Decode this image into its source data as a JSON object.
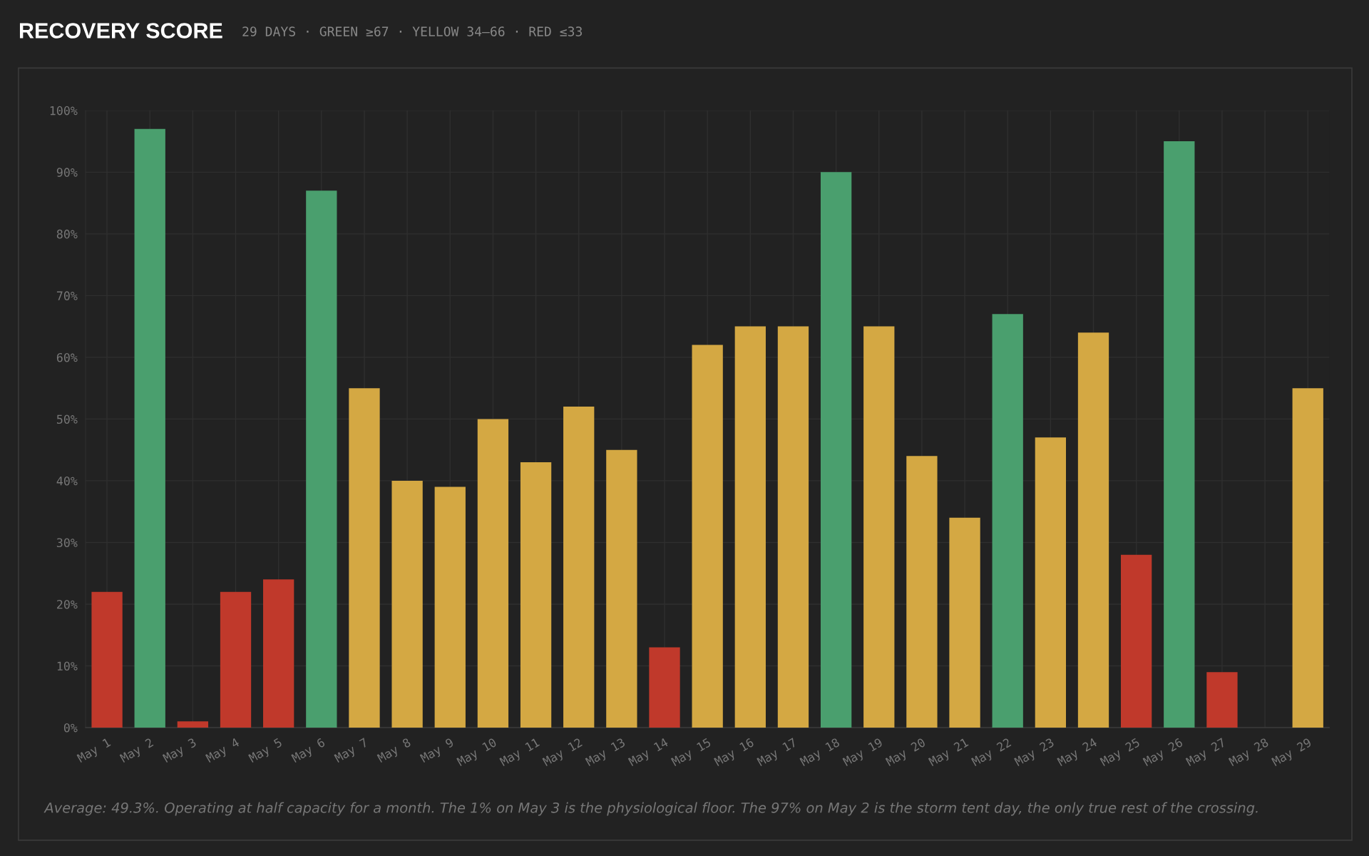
{
  "chart_data": {
    "type": "bar",
    "title": "RECOVERY SCORE",
    "subtitle": "29 DAYS · GREEN ≥67 · YELLOW 34–66 · RED ≤33",
    "categories": [
      "May 1",
      "May 2",
      "May 3",
      "May 4",
      "May 5",
      "May 6",
      "May 7",
      "May 8",
      "May 9",
      "May 10",
      "May 11",
      "May 12",
      "May 13",
      "May 14",
      "May 15",
      "May 16",
      "May 17",
      "May 18",
      "May 19",
      "May 20",
      "May 21",
      "May 22",
      "May 23",
      "May 24",
      "May 25",
      "May 26",
      "May 27",
      "May 28",
      "May 29"
    ],
    "values": [
      22,
      97,
      1,
      22,
      24,
      87,
      55,
      40,
      39,
      50,
      43,
      52,
      45,
      13,
      62,
      65,
      65,
      90,
      65,
      44,
      34,
      67,
      47,
      64,
      28,
      95,
      9,
      null,
      55
    ],
    "colors": [
      "#c0392b",
      "#4a9f6e",
      "#c0392b",
      "#c0392b",
      "#c0392b",
      "#4a9f6e",
      "#d4a843",
      "#d4a843",
      "#d4a843",
      "#d4a843",
      "#d4a843",
      "#d4a843",
      "#d4a843",
      "#c0392b",
      "#d4a843",
      "#d4a843",
      "#d4a843",
      "#4a9f6e",
      "#d4a843",
      "#d4a843",
      "#d4a843",
      "#4a9f6e",
      "#d4a843",
      "#d4a843",
      "#c0392b",
      "#4a9f6e",
      "#c0392b",
      "#c0392b",
      "#d4a843"
    ],
    "ylim": [
      0,
      100
    ],
    "yticks": [
      {
        "value": 0,
        "label": "0%"
      },
      {
        "value": 10,
        "label": "10%"
      },
      {
        "value": 20,
        "label": "20%"
      },
      {
        "value": 30,
        "label": "30%"
      },
      {
        "value": 40,
        "label": "40%"
      },
      {
        "value": 50,
        "label": "50%"
      },
      {
        "value": 60,
        "label": "60%"
      },
      {
        "value": 70,
        "label": "70%"
      },
      {
        "value": 80,
        "label": "80%"
      },
      {
        "value": 90,
        "label": "90%"
      },
      {
        "value": 100,
        "label": "100%"
      }
    ],
    "grid": true,
    "legend": false,
    "annotations": [
      "Average: 49.3%. Operating at half capacity for a month. The 1% on May 3 is the physiological floor. The 97% on May 2 is the storm tent day, the only true rest of the crossing."
    ]
  }
}
